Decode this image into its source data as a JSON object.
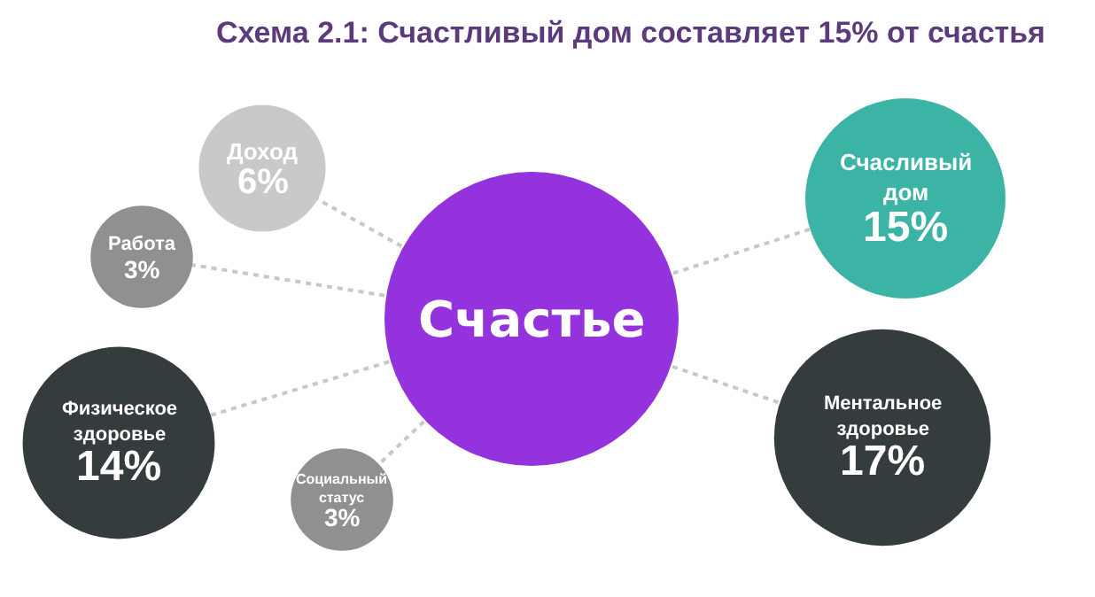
{
  "chart_data": {
    "type": "other",
    "title": "Схема 2.1: Счастливый дом составляет 15% от счастья",
    "categories": [
      "Доход",
      "Работа",
      "Физическое здоровье",
      "Социальный статус",
      "Счасливый дом",
      "Ментальное здоровье"
    ],
    "values": [
      6,
      3,
      14,
      3,
      15,
      17
    ],
    "value_labels": [
      "6%",
      "3%",
      "14%",
      "3%",
      "15%",
      "17%"
    ],
    "colors": [
      "#c9c9c9",
      "#8f9191",
      "#343c3e",
      "#8f9191",
      "#3bb3a5",
      "#343c3e"
    ],
    "annotations": [
      "Счастье"
    ]
  }
}
